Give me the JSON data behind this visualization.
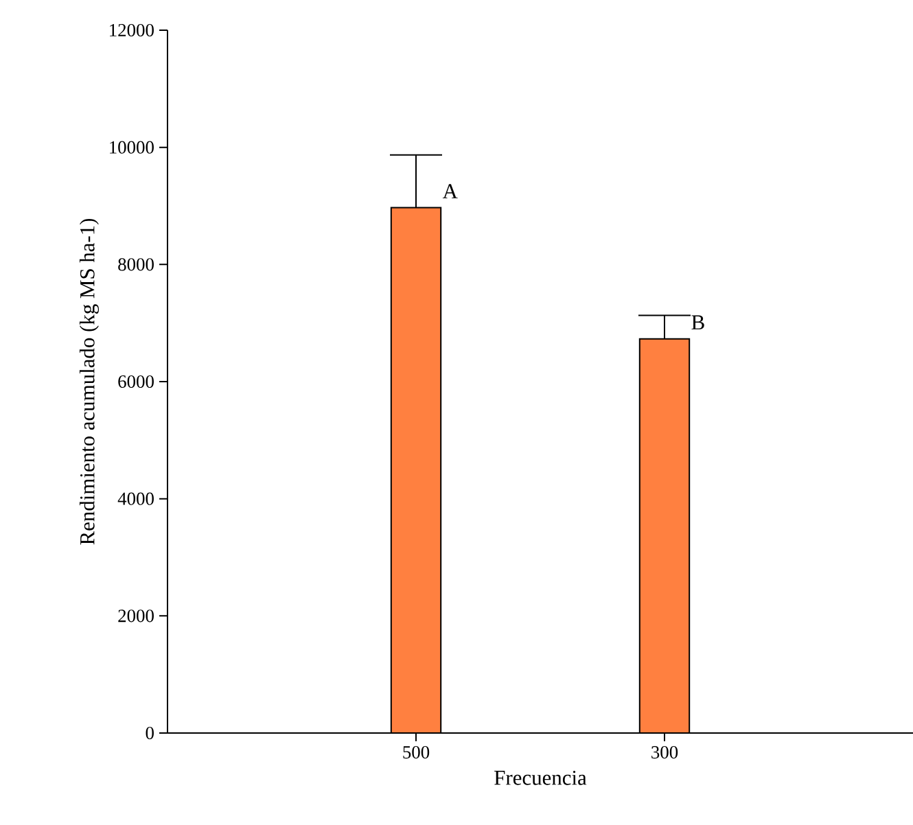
{
  "chart_data": {
    "type": "bar",
    "xlabel": "Frecuencia",
    "ylabel": "Rendimiento acumulado (kg MS ha-1)",
    "categories": [
      "500",
      "300"
    ],
    "values": [
      8970,
      6730
    ],
    "errors": [
      900,
      400
    ],
    "color": "#ff8040",
    "ylim": [
      0,
      12000
    ],
    "yticks": [
      0,
      2000,
      4000,
      6000,
      8000,
      10000,
      12000
    ],
    "grid": false,
    "annotations": [
      {
        "text": "A",
        "x": "500",
        "y": 8970
      },
      {
        "text": "B",
        "x": "300",
        "y": 6730
      }
    ]
  }
}
